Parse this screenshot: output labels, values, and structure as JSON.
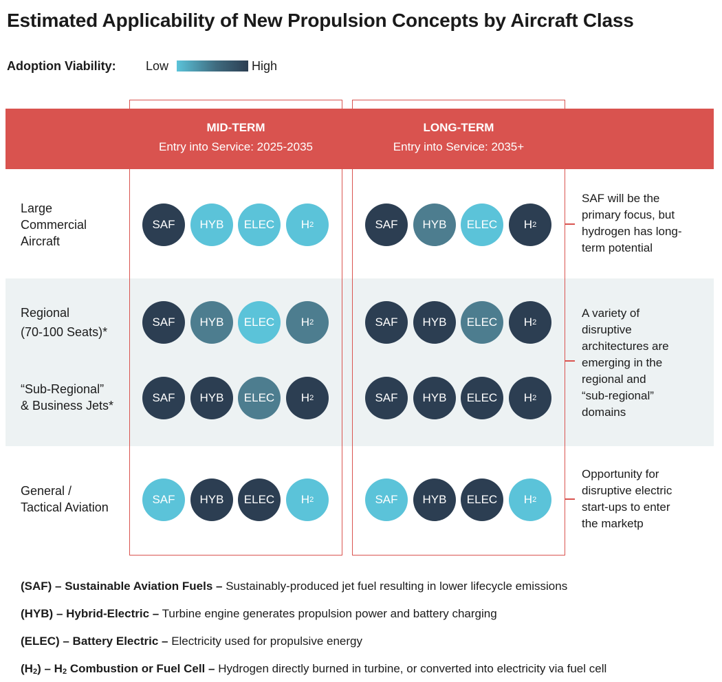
{
  "title": "Estimated Applicability of New Propulsion Concepts by Aircraft Class",
  "legend": {
    "label": "Adoption Viability:",
    "low": "Low",
    "high": "High"
  },
  "colors": {
    "header_band": "#d9534f",
    "high": "#2c3e52",
    "medium": "#4d7d8f",
    "low": "#5bc3d9"
  },
  "columns": [
    {
      "title": "MID-TERM",
      "subtitle": "Entry into Service: 2025-2035"
    },
    {
      "title": "LONG-TERM",
      "subtitle": "Entry into Service: 2035+"
    }
  ],
  "rows": [
    {
      "label_lines": [
        "Large",
        "Commercial",
        "Aircraft"
      ],
      "mid": [
        {
          "t": "SAF",
          "v": "high"
        },
        {
          "t": "HYB",
          "v": "low"
        },
        {
          "t": "ELEC",
          "v": "low"
        },
        {
          "t": "H",
          "sub": "2",
          "v": "low"
        }
      ],
      "long": [
        {
          "t": "SAF",
          "v": "high"
        },
        {
          "t": "HYB",
          "v": "medium"
        },
        {
          "t": "ELEC",
          "v": "low"
        },
        {
          "t": "H",
          "sub": "2",
          "v": "high"
        }
      ]
    },
    {
      "label_lines": [
        "Regional",
        "(70-100 Seats)*"
      ],
      "mid": [
        {
          "t": "SAF",
          "v": "high"
        },
        {
          "t": "HYB",
          "v": "medium"
        },
        {
          "t": "ELEC",
          "v": "low"
        },
        {
          "t": "H",
          "sub": "2",
          "v": "medium"
        }
      ],
      "long": [
        {
          "t": "SAF",
          "v": "high"
        },
        {
          "t": "HYB",
          "v": "high"
        },
        {
          "t": "ELEC",
          "v": "medium"
        },
        {
          "t": "H",
          "sub": "2",
          "v": "high"
        }
      ]
    },
    {
      "label_lines": [
        "“Sub-Regional”",
        "& Business Jets*"
      ],
      "mid": [
        {
          "t": "SAF",
          "v": "high"
        },
        {
          "t": "HYB",
          "v": "high"
        },
        {
          "t": "ELEC",
          "v": "medium"
        },
        {
          "t": "H",
          "sub": "2",
          "v": "high"
        }
      ],
      "long": [
        {
          "t": "SAF",
          "v": "high"
        },
        {
          "t": "HYB",
          "v": "high"
        },
        {
          "t": "ELEC",
          "v": "high"
        },
        {
          "t": "H",
          "sub": "2",
          "v": "high"
        }
      ]
    },
    {
      "label_lines": [
        "General /",
        "Tactical Aviation"
      ],
      "mid": [
        {
          "t": "SAF",
          "v": "low"
        },
        {
          "t": "HYB",
          "v": "high"
        },
        {
          "t": "ELEC",
          "v": "high"
        },
        {
          "t": "H",
          "sub": "2",
          "v": "low"
        }
      ],
      "long": [
        {
          "t": "SAF",
          "v": "low"
        },
        {
          "t": "HYB",
          "v": "high"
        },
        {
          "t": "ELEC",
          "v": "high"
        },
        {
          "t": "H",
          "sub": "2",
          "v": "low"
        }
      ]
    }
  ],
  "notes": [
    [
      "SAF will be the",
      "primary focus, but",
      "hydrogen has long-",
      "term potential"
    ],
    [
      "A variety of",
      "disruptive",
      "architectures are",
      "emerging in the",
      "regional and",
      "“sub-regional”",
      "domains"
    ],
    [
      "Opportunity for",
      "disruptive electric",
      "start-ups to enter",
      "the marketp"
    ]
  ],
  "definitions": [
    {
      "abbr": "(SAF) – Sustainable Aviation Fuels –",
      "text": " Sustainably-produced jet fuel resulting in lower lifecycle emissions"
    },
    {
      "abbr": "(HYB) – Hybrid-Electric –",
      "text": " Turbine engine generates propulsion power and battery charging"
    },
    {
      "abbr": "(ELEC) – Battery Electric –",
      "text": " Electricity used for propulsive energy"
    },
    {
      "abbr_parts": [
        "(H",
        "2",
        ") – H",
        "2",
        " Combustion or Fuel Cell –"
      ],
      "text": " Hydrogen directly burned in turbine, or converted into electricity via fuel cell"
    }
  ]
}
